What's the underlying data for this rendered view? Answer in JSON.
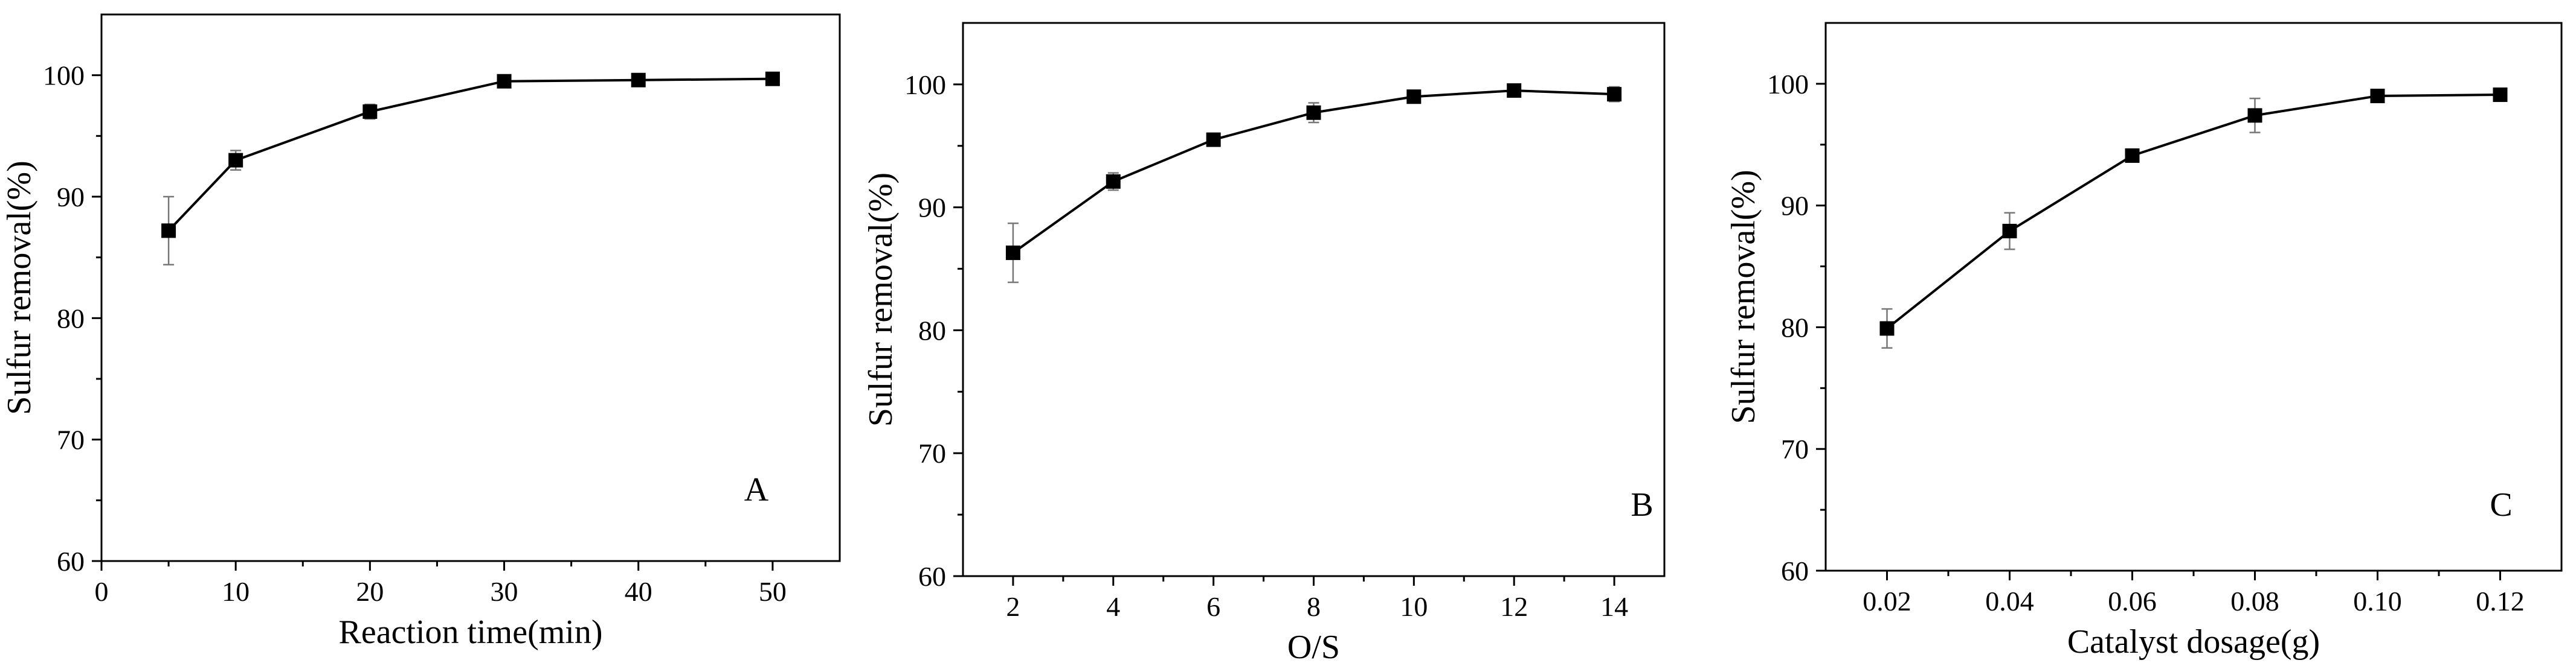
{
  "chart_data": [
    {
      "type": "line",
      "panel_label": "A",
      "xlabel": "Reaction time(min)",
      "ylabel": "Sulfur removal(%)",
      "xlim": [
        0,
        55
      ],
      "ylim": [
        60,
        105
      ],
      "x_ticks": [
        0,
        10,
        20,
        30,
        40,
        50
      ],
      "x_tick_labels": [
        "0",
        "10",
        "20",
        "30",
        "40",
        "50"
      ],
      "y_ticks": [
        60,
        70,
        80,
        90,
        100
      ],
      "y_tick_labels": [
        "60",
        "70",
        "80",
        "90",
        "100"
      ],
      "grid": false,
      "x": [
        5,
        10,
        20,
        30,
        40,
        50
      ],
      "values": [
        87.2,
        93.0,
        97.0,
        99.5,
        99.6,
        99.7
      ],
      "error": [
        2.8,
        0.8,
        0.6,
        0.3,
        0.3,
        0.3
      ]
    },
    {
      "type": "line",
      "panel_label": "B",
      "xlabel": "O/S",
      "ylabel": "Sulfur removal(%)",
      "xlim": [
        1,
        15
      ],
      "ylim": [
        60,
        105
      ],
      "x_ticks": [
        2,
        4,
        6,
        8,
        10,
        12,
        14
      ],
      "x_tick_labels": [
        "2",
        "4",
        "6",
        "8",
        "10",
        "12",
        "14"
      ],
      "y_ticks": [
        60,
        70,
        80,
        90,
        100
      ],
      "y_tick_labels": [
        "60",
        "70",
        "80",
        "90",
        "100"
      ],
      "grid": false,
      "x": [
        2,
        4,
        6,
        8,
        10,
        12,
        14
      ],
      "values": [
        86.3,
        92.1,
        95.5,
        97.7,
        99.0,
        99.5,
        99.2
      ],
      "error": [
        2.4,
        0.7,
        0.3,
        0.8,
        0.3,
        0.3,
        0.6
      ]
    },
    {
      "type": "line",
      "panel_label": "C",
      "xlabel": "Catalyst dosage(g)",
      "ylabel": "Sulfur removal(%)",
      "xlim": [
        0.01,
        0.13
      ],
      "ylim": [
        60,
        105
      ],
      "x_ticks": [
        0.02,
        0.04,
        0.06,
        0.08,
        0.1,
        0.12
      ],
      "x_tick_labels": [
        "0.02",
        "0.04",
        "0.06",
        "0.08",
        "0.10",
        "0.12"
      ],
      "y_ticks": [
        60,
        70,
        80,
        90,
        100
      ],
      "y_tick_labels": [
        "60",
        "70",
        "80",
        "90",
        "100"
      ],
      "grid": false,
      "x": [
        0.02,
        0.04,
        0.06,
        0.08,
        0.1,
        0.12
      ],
      "values": [
        79.9,
        87.9,
        94.1,
        97.4,
        99.0,
        99.1
      ],
      "error": [
        1.6,
        1.5,
        0.3,
        1.4,
        0.3,
        0.3
      ]
    }
  ]
}
